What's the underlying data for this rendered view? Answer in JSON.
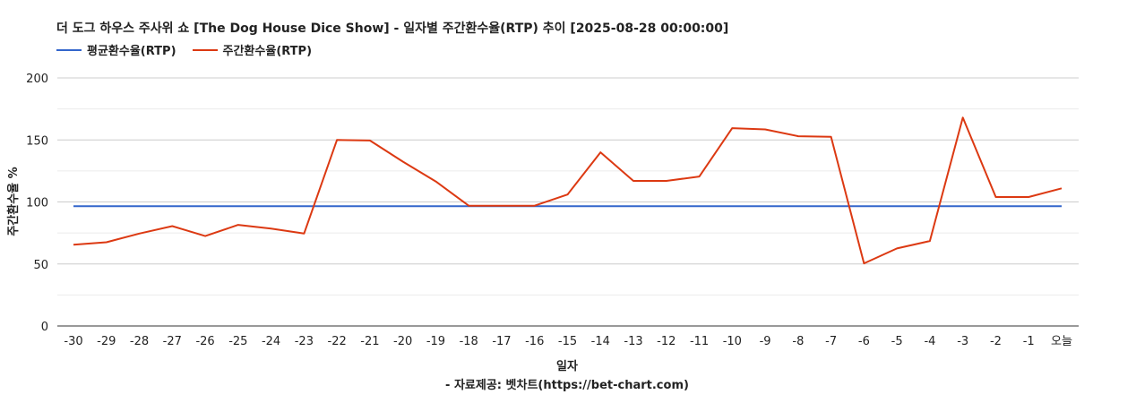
{
  "chart_data": {
    "type": "line",
    "title": "더 도그 하우스 주사위 쇼 [The Dog House Dice Show] - 일자별 주간환수율(RTP) 추이 [2025-08-28 00:00:00]",
    "xlabel": "일자",
    "ylabel": "주간환수율 %",
    "source_note": "- 자료제공: 벳차트(https://bet-chart.com)",
    "categories": [
      "-30",
      "-29",
      "-28",
      "-27",
      "-26",
      "-25",
      "-24",
      "-23",
      "-22",
      "-21",
      "-20",
      "-19",
      "-18",
      "-17",
      "-16",
      "-15",
      "-14",
      "-13",
      "-12",
      "-11",
      "-10",
      "-9",
      "-8",
      "-7",
      "-6",
      "-5",
      "-4",
      "-3",
      "-2",
      "-1",
      "오늘"
    ],
    "ylim": [
      0,
      200
    ],
    "yticks": [
      0,
      50,
      100,
      150,
      200
    ],
    "grid": true,
    "legend_position": "top-left",
    "series": [
      {
        "name": "평균환수율(RTP)",
        "color": "#3366cc",
        "values": [
          96.5,
          96.5,
          96.5,
          96.5,
          96.5,
          96.5,
          96.5,
          96.5,
          96.5,
          96.5,
          96.5,
          96.5,
          96.5,
          96.5,
          96.5,
          96.5,
          96.5,
          96.5,
          96.5,
          96.5,
          96.5,
          96.5,
          96.5,
          96.5,
          96.5,
          96.5,
          96.5,
          96.5,
          96.5,
          96.5,
          96.5
        ]
      },
      {
        "name": "주간환수율(RTP)",
        "color": "#dc3912",
        "values": [
          65.5,
          67.5,
          74.5,
          80.5,
          72.5,
          81.5,
          78.5,
          74.5,
          150,
          149.5,
          132.5,
          116.5,
          97,
          97,
          97,
          106,
          140,
          117,
          117,
          120.5,
          159.5,
          158.5,
          153,
          152.5,
          50.5,
          62.5,
          68.5,
          168,
          104,
          104,
          111
        ]
      }
    ]
  }
}
